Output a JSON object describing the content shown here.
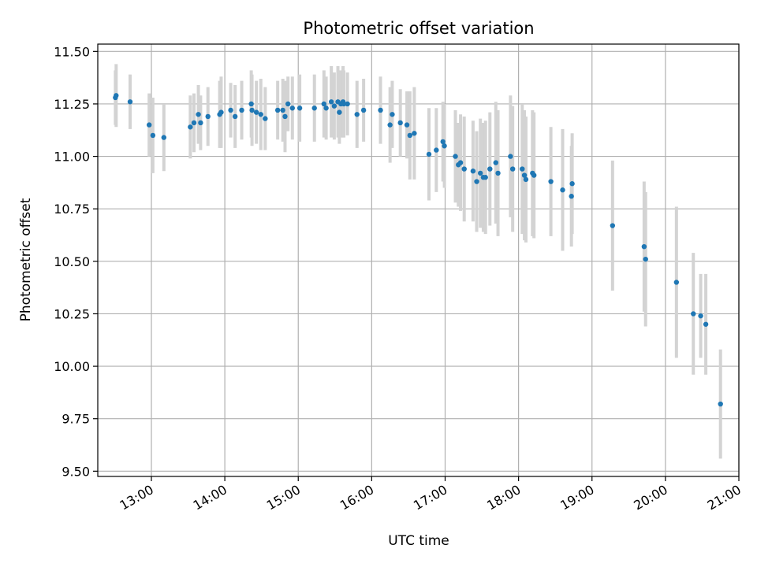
{
  "chart_data": {
    "type": "scatter",
    "title": "Photometric offset variation",
    "xlabel": "UTC time",
    "ylabel": "Photometric offset",
    "xlim": [
      12.27,
      21.0
    ],
    "ylim": [
      9.475,
      11.535
    ],
    "xticks": [
      13,
      14,
      15,
      16,
      17,
      18,
      19,
      20,
      21
    ],
    "xtick_labels": [
      "13:00",
      "14:00",
      "15:00",
      "16:00",
      "17:00",
      "18:00",
      "19:00",
      "20:00",
      "21:00"
    ],
    "yticks": [
      9.5,
      9.75,
      10.0,
      10.25,
      10.5,
      10.75,
      11.0,
      11.25,
      11.5
    ],
    "ytick_labels": [
      "9.50",
      "9.75",
      "10.00",
      "10.25",
      "10.50",
      "10.75",
      "11.00",
      "11.25",
      "11.50"
    ],
    "grid": true,
    "colors": {
      "point": "#1f77b4",
      "errorbar": "#d3d3d3",
      "grid": "#b0b0b0"
    },
    "series": [
      {
        "name": "offset",
        "x": [
          12.51,
          12.52,
          12.71,
          12.97,
          13.02,
          13.17,
          13.53,
          13.58,
          13.64,
          13.67,
          13.77,
          13.93,
          13.95,
          14.08,
          14.14,
          14.23,
          14.36,
          14.37,
          14.43,
          14.49,
          14.55,
          14.72,
          14.79,
          14.82,
          14.86,
          14.92,
          15.02,
          15.22,
          15.35,
          15.38,
          15.45,
          15.49,
          15.54,
          15.56,
          15.58,
          15.61,
          15.62,
          15.67,
          15.8,
          15.89,
          16.12,
          16.25,
          16.28,
          16.39,
          16.48,
          16.52,
          16.58,
          16.78,
          16.88,
          16.97,
          16.99,
          17.14,
          17.18,
          17.21,
          17.26,
          17.38,
          17.43,
          17.48,
          17.52,
          17.55,
          17.61,
          17.69,
          17.72,
          17.89,
          17.92,
          18.05,
          18.08,
          18.1,
          18.19,
          18.21,
          18.44,
          18.6,
          18.72,
          18.73,
          19.28,
          19.71,
          19.73,
          20.15,
          20.38,
          20.48,
          20.55,
          20.75
        ],
        "y": [
          11.28,
          11.29,
          11.26,
          11.15,
          11.1,
          11.09,
          11.14,
          11.16,
          11.2,
          11.16,
          11.19,
          11.2,
          11.21,
          11.22,
          11.19,
          11.22,
          11.25,
          11.22,
          11.21,
          11.2,
          11.18,
          11.22,
          11.22,
          11.19,
          11.25,
          11.23,
          11.23,
          11.23,
          11.25,
          11.23,
          11.26,
          11.24,
          11.26,
          11.21,
          11.25,
          11.26,
          11.25,
          11.25,
          11.2,
          11.22,
          11.22,
          11.15,
          11.2,
          11.16,
          11.15,
          11.1,
          11.11,
          11.01,
          11.03,
          11.07,
          11.05,
          11.0,
          10.96,
          10.97,
          10.94,
          10.93,
          10.88,
          10.92,
          10.9,
          10.9,
          10.94,
          10.97,
          10.92,
          11.0,
          10.94,
          10.94,
          10.91,
          10.89,
          10.92,
          10.91,
          10.88,
          10.84,
          10.81,
          10.87,
          10.67,
          10.57,
          10.51,
          10.4,
          10.25,
          10.24,
          10.2,
          9.82
        ],
        "err": [
          0.13,
          0.15,
          0.13,
          0.15,
          0.18,
          0.16,
          0.15,
          0.14,
          0.14,
          0.13,
          0.14,
          0.16,
          0.17,
          0.13,
          0.15,
          0.14,
          0.16,
          0.17,
          0.15,
          0.17,
          0.15,
          0.14,
          0.15,
          0.17,
          0.13,
          0.15,
          0.16,
          0.16,
          0.16,
          0.15,
          0.17,
          0.16,
          0.17,
          0.15,
          0.16,
          0.17,
          0.16,
          0.15,
          0.16,
          0.15,
          0.16,
          0.18,
          0.16,
          0.16,
          0.16,
          0.21,
          0.22,
          0.22,
          0.2,
          0.19,
          0.2,
          0.22,
          0.2,
          0.23,
          0.25,
          0.24,
          0.24,
          0.26,
          0.26,
          0.27,
          0.27,
          0.29,
          0.3,
          0.29,
          0.3,
          0.31,
          0.31,
          0.3,
          0.3,
          0.3,
          0.26,
          0.29,
          0.24,
          0.24,
          0.31,
          0.31,
          0.32,
          0.36,
          0.29,
          0.2,
          0.24,
          0.26
        ]
      }
    ]
  }
}
